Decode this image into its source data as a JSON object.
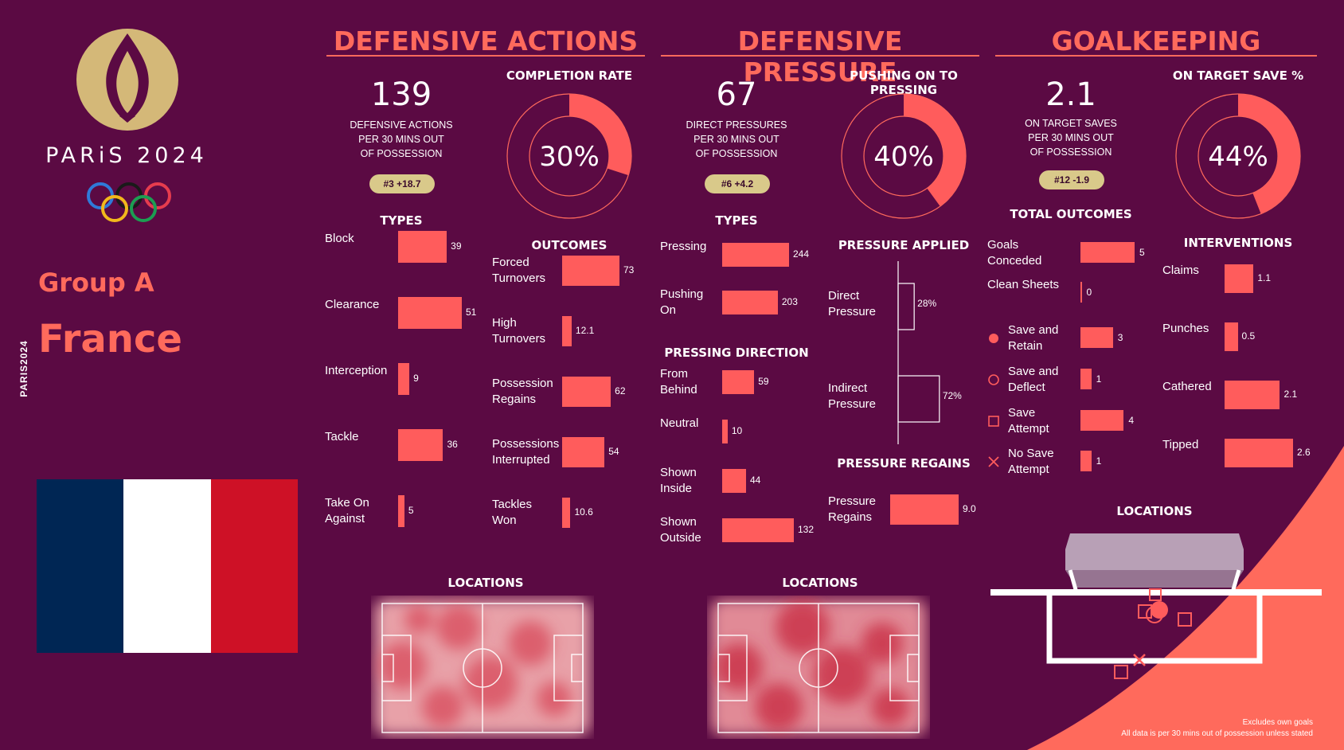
{
  "brand": {
    "event": "PARiS 2024",
    "side_text": "PARIS2024"
  },
  "team": {
    "group": "Group A",
    "name": "France",
    "flag_colors": [
      "#002654",
      "#ffffff",
      "#ce1126"
    ]
  },
  "colors": {
    "background": "#5b0a43",
    "accent": "#ff6a5c",
    "bar": "#ff5c5c",
    "pill": "#d9c98a",
    "gold": "#d4b878"
  },
  "defensive_actions": {
    "title": "DEFENSIVE ACTIONS",
    "big_value": "139",
    "big_label": "DEFENSIVE ACTIONS\nPER 30 MINS OUT\nOF POSSESSION",
    "rank": "#3 +18.7",
    "completion_title": "COMPLETION RATE",
    "completion_text": "30%",
    "types_title": "TYPES",
    "outcomes_title": "OUTCOMES",
    "locations_title": "LOCATIONS"
  },
  "defensive_pressure": {
    "title": "DEFENSIVE PRESSURE",
    "big_value": "67",
    "big_label": "DIRECT PRESSURES\nPER 30 MINS OUT\nOF POSSESSION",
    "rank": "#6 +4.2",
    "pushing_title": "PUSHING ON TO PRESSING",
    "pushing_text": "40%",
    "types_title": "TYPES",
    "direction_title": "PRESSING DIRECTION",
    "applied_title": "PRESSURE APPLIED",
    "regains_title": "PRESSURE REGAINS",
    "locations_title": "LOCATIONS"
  },
  "goalkeeping": {
    "title": "GOALKEEPING",
    "big_value": "2.1",
    "big_label": "ON TARGET SAVES\nPER 30 MINS OUT\nOF POSSESSION",
    "rank": "#12 -1.9",
    "save_title": "ON TARGET SAVE %",
    "save_text": "44%",
    "outcomes_title": "TOTAL OUTCOMES",
    "interventions_title": "INTERVENTIONS",
    "locations_title": "LOCATIONS"
  },
  "footnotes": {
    "line1": "Excludes own goals",
    "line2": "All data is per 30 mins out of possession unless stated"
  },
  "chart_data": [
    {
      "id": "completion_rate",
      "type": "pie",
      "title": "COMPLETION RATE",
      "values": [
        30,
        70
      ]
    },
    {
      "id": "da_types",
      "type": "bar",
      "title": "TYPES",
      "categories": [
        "Block",
        "Clearance",
        "Interception",
        "Tackle",
        "Take On\nAgainst"
      ],
      "values": [
        39,
        51,
        9,
        36,
        5
      ],
      "labels": [
        "39",
        "51",
        "9",
        "36",
        "5"
      ],
      "max": 51
    },
    {
      "id": "da_outcomes",
      "type": "bar",
      "title": "OUTCOMES",
      "categories": [
        "Forced\nTurnovers",
        "High\nTurnovers",
        "Possession\nRegains",
        "Possessions\nInterrupted",
        "Tackles\nWon"
      ],
      "values": [
        73,
        12.1,
        62,
        54,
        10.6
      ],
      "labels": [
        "73",
        "12.1",
        "62",
        "54",
        "10.6"
      ],
      "max": 73
    },
    {
      "id": "pushing_on",
      "type": "pie",
      "title": "PUSHING ON TO PRESSING",
      "values": [
        40,
        60
      ]
    },
    {
      "id": "dp_types",
      "type": "bar",
      "title": "TYPES",
      "categories": [
        "Pressing",
        "Pushing\nOn"
      ],
      "values": [
        244,
        203
      ],
      "labels": [
        "244",
        "203"
      ],
      "max": 244
    },
    {
      "id": "pressing_direction",
      "type": "bar",
      "title": "PRESSING DIRECTION",
      "categories": [
        "From\nBehind",
        "Neutral",
        "Shown\nInside",
        "Shown\nOutside"
      ],
      "values": [
        59,
        10,
        44,
        132
      ],
      "labels": [
        "59",
        "10",
        "44",
        "132"
      ],
      "max": 132
    },
    {
      "id": "pressure_applied",
      "type": "bar",
      "title": "PRESSURE APPLIED",
      "categories": [
        "Direct\nPressure",
        "Indirect\nPressure"
      ],
      "values": [
        28,
        72
      ],
      "labels": [
        "28%",
        "72%"
      ]
    },
    {
      "id": "pressure_regains",
      "type": "bar",
      "title": "PRESSURE REGAINS",
      "categories": [
        "Pressure\nRegains"
      ],
      "values": [
        9.0
      ],
      "labels": [
        "9.0"
      ],
      "max": 9.0
    },
    {
      "id": "save_pct",
      "type": "pie",
      "title": "ON TARGET SAVE %",
      "values": [
        44,
        56
      ]
    },
    {
      "id": "total_outcomes",
      "type": "bar",
      "title": "TOTAL OUTCOMES",
      "categories": [
        "Goals\nConceded",
        "Clean Sheets",
        "Save and\nRetain",
        "Save and\nDeflect",
        "Save\nAttempt",
        "No Save\nAttempt"
      ],
      "values": [
        5,
        0,
        3,
        1,
        4,
        1
      ],
      "labels": [
        "5",
        "0",
        "3",
        "1",
        "4",
        "1"
      ],
      "markers": [
        "",
        "",
        "dot",
        "circle",
        "square",
        "cross"
      ],
      "max": 5
    },
    {
      "id": "interventions",
      "type": "bar",
      "title": "INTERVENTIONS",
      "categories": [
        "Claims",
        "Punches",
        "Cathered",
        "Tipped"
      ],
      "values": [
        1.1,
        0.5,
        2.1,
        2.6
      ],
      "labels": [
        "1.1",
        "0.5",
        "2.1",
        "2.6"
      ],
      "max": 2.6
    }
  ]
}
